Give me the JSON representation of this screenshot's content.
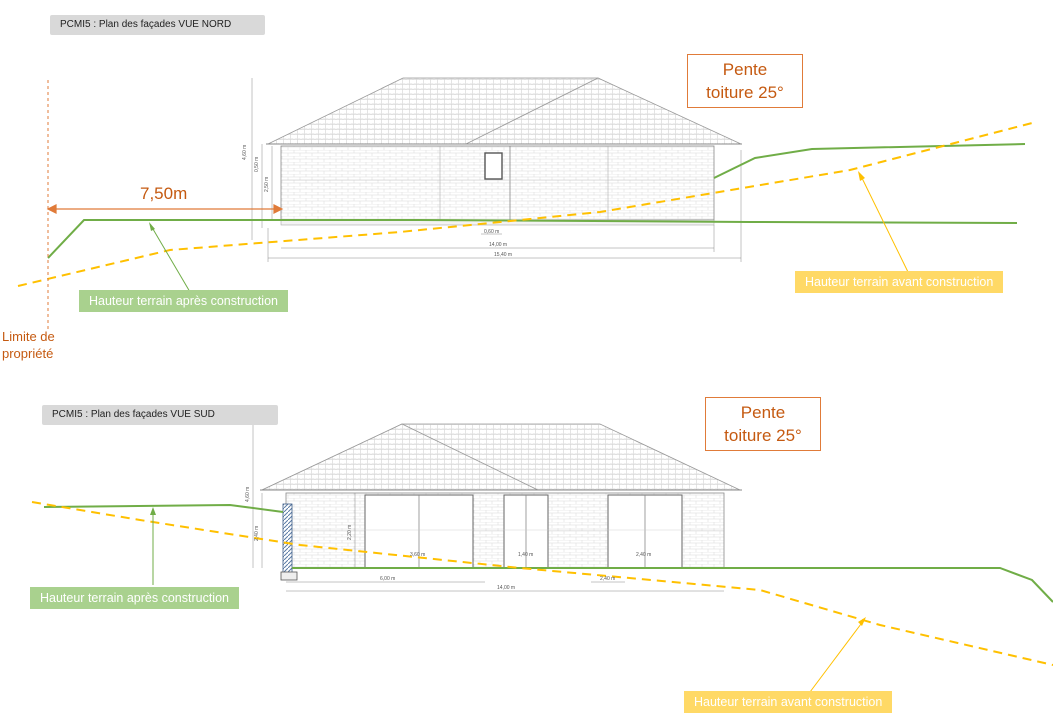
{
  "north": {
    "tag": "PCMI5 : Plan des façades VUE NORD",
    "pente": [
      "Pente",
      "toiture 25°"
    ],
    "distance": "7,50m",
    "label_after": "Hauteur terrain après construction",
    "label_before": "Hauteur terrain avant construction",
    "limite": [
      "Limite de",
      "propriété"
    ],
    "dims": [
      "4,60 m",
      "0,50 m",
      "2,50 m",
      "0,60 m",
      "14,00 m",
      "15,40 m"
    ]
  },
  "south": {
    "tag": "PCMI5 : Plan des façades VUE SUD",
    "pente": [
      "Pente",
      "toiture 25°"
    ],
    "label_after": "Hauteur terrain après construction",
    "label_before": "Hauteur terrain avant construction",
    "dims": [
      "4,60 m",
      "2,40 m",
      "2,20 m",
      "3,60 m",
      "1,40 m",
      "2,40 m",
      "6,00 m",
      "14,00 m",
      "2,40 m"
    ]
  },
  "colors": {
    "green": "#70ad47",
    "yellow": "#ffc000",
    "orange": "#e07b39",
    "label_green": "#a9d18e",
    "label_yellow": "#ffd966"
  }
}
